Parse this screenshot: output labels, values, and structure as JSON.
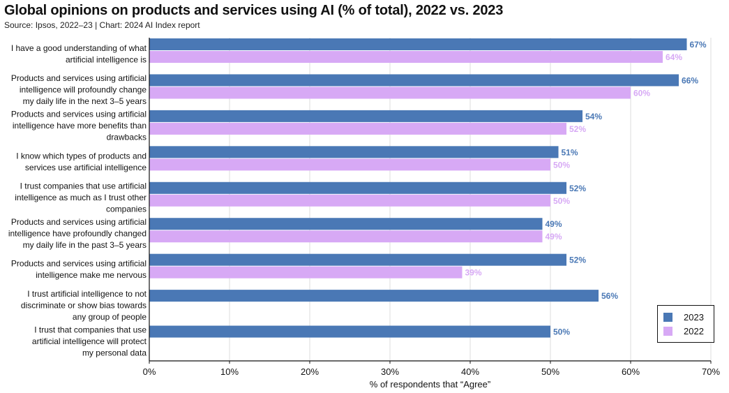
{
  "colors": {
    "series_2023": "#4a78b5",
    "series_2022": "#d7a9f5",
    "axis": "#111111",
    "grid": "#dddddd"
  },
  "chart_data": {
    "type": "bar",
    "orientation": "horizontal",
    "title": "Global opinions on products and services using AI (% of total), 2022 vs. 2023",
    "subtitle": "Source: Ipsos, 2022–23 | Chart: 2024 AI Index report",
    "xlabel": "% of respondents that “Agree”",
    "ylabel": "",
    "xlim": [
      0,
      70
    ],
    "xticks": [
      "0%",
      "10%",
      "20%",
      "30%",
      "40%",
      "50%",
      "60%",
      "70%"
    ],
    "grid": "vertical",
    "legend_position": "bottom-right",
    "categories": [
      [
        "I have a good understanding of what",
        "artificial intelligence is"
      ],
      [
        "Products and services using artificial",
        "intelligence will profoundly change",
        "my daily life in the next 3–5 years"
      ],
      [
        "Products and services using artificial",
        "intelligence have more benefits than",
        "drawbacks"
      ],
      [
        "I know which types of products and",
        "services use artificial intelligence"
      ],
      [
        "I trust companies that use artificial",
        "intelligence as much as I trust other",
        "companies"
      ],
      [
        "Products and services using artificial",
        "intelligence have profoundly changed",
        "my daily life in the past 3–5 years"
      ],
      [
        "Products and services using artificial",
        "intelligence make me nervous"
      ],
      [
        "I trust artificial intelligence to not",
        "discriminate or show bias towards",
        "any group of people"
      ],
      [
        "I trust that companies that use",
        "artificial intelligence will protect",
        "my personal data"
      ]
    ],
    "series": [
      {
        "name": "2023",
        "values": [
          67,
          66,
          54,
          51,
          52,
          49,
          52,
          56,
          50
        ],
        "labels": [
          "67%",
          "66%",
          "54%",
          "51%",
          "52%",
          "49%",
          "52%",
          "56%",
          "50%"
        ]
      },
      {
        "name": "2022",
        "values": [
          64,
          60,
          52,
          50,
          50,
          49,
          39,
          null,
          null
        ],
        "labels": [
          "64%",
          "60%",
          "52%",
          "50%",
          "50%",
          "49%",
          "39%",
          "",
          ""
        ]
      }
    ]
  }
}
